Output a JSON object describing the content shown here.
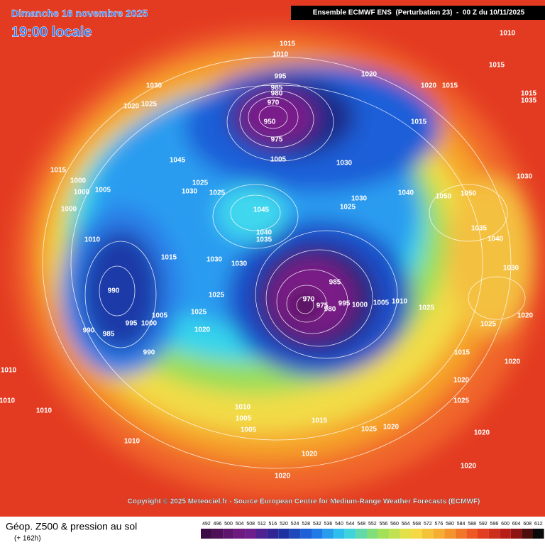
{
  "header": {
    "date": "Dimanche 16 novembre 2025",
    "time": "19:00 locale",
    "model": "Ensemble ECMWF ENS  (Perturbation 23)  -  00 Z du 10/11/2025"
  },
  "map": {
    "pressure_labels": [
      1015,
      1010,
      1020,
      995,
      985,
      980,
      970,
      950,
      975,
      1005,
      1030,
      1020,
      1025,
      1010,
      1015,
      1015,
      1035,
      1020,
      1015,
      1015,
      1030,
      1045,
      1015,
      1000,
      1005,
      1000,
      1000,
      1025,
      1030,
      1025,
      1045,
      1040,
      1035,
      1030,
      1025,
      1040,
      1050,
      1050,
      1010,
      1015,
      1030,
      1030,
      990,
      985,
      970,
      975,
      980,
      995,
      1000,
      1005,
      1010,
      1025,
      1025,
      1020,
      1005,
      995,
      1000,
      990,
      985,
      990,
      1010,
      1010,
      1010,
      1010,
      1010,
      1005,
      1005,
      1015,
      1025,
      1020,
      1020,
      1020,
      1020,
      1030,
      1035,
      1040,
      1020,
      1025,
      1020,
      1020,
      1020,
      1015,
      1025,
      1030,
      1025
    ]
  },
  "footer": {
    "copyright": "Copyright © 2025 Meteociel.fr - Source European Centre for Medium-Range Weather Forecasts (ECMWF)",
    "title": "Géop. Z500 & pression au sol",
    "lead": "(+ 162h)",
    "scale": [
      492,
      496,
      500,
      504,
      508,
      512,
      516,
      520,
      524,
      528,
      532,
      536,
      540,
      544,
      548,
      552,
      556,
      560,
      564,
      568,
      572,
      576,
      580,
      584,
      588,
      592,
      596,
      600,
      604,
      608,
      612
    ]
  }
}
